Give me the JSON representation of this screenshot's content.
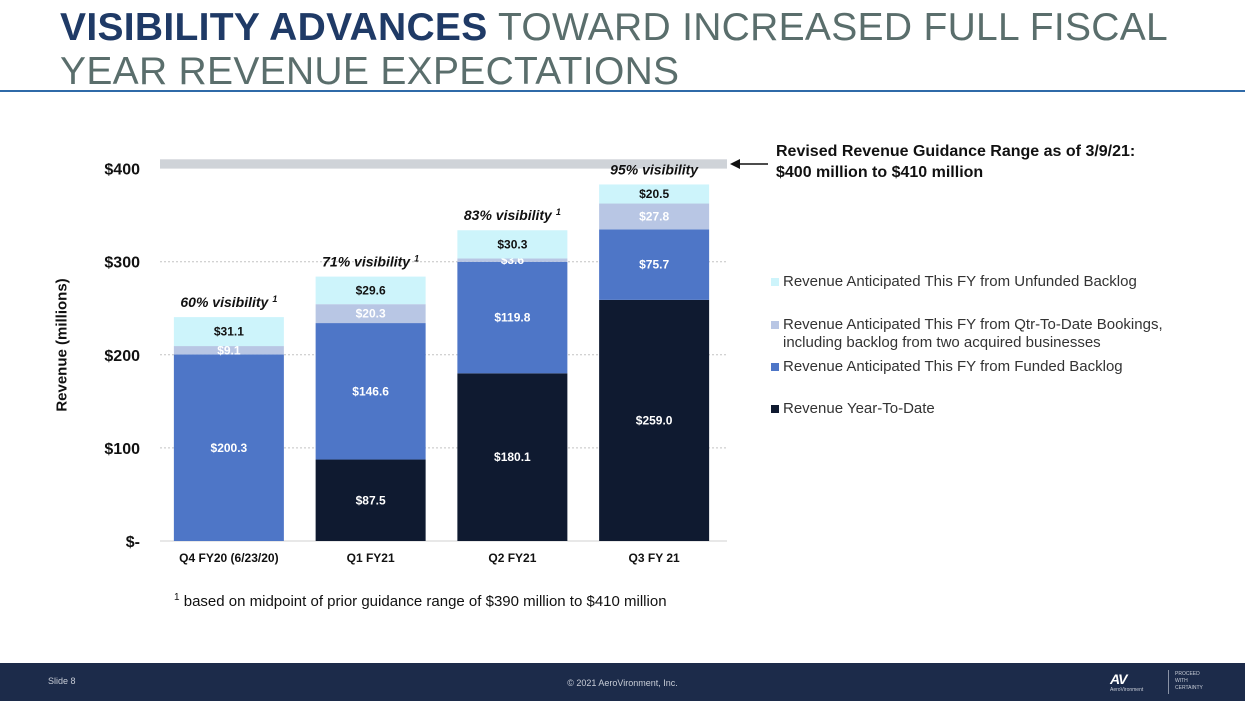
{
  "title": {
    "bold": "VISIBILITY ADVANCES",
    "rest": " TOWARD INCREASED FULL FISCAL YEAR REVENUE EXPECTATIONS"
  },
  "annotation": {
    "line1": "Revised Revenue Guidance Range as of 3/9/21:",
    "line2": "$400 million to $410 million"
  },
  "footnote": {
    "marker": "1",
    "text": " based on midpoint of prior guidance range of $390 million to $410 million"
  },
  "footer": {
    "slide": "Slide 8",
    "copyright": "© 2021 AeroVironment, Inc.",
    "logo_mark": "AV",
    "logo_name": "AeroVironment",
    "tagline": [
      "PROCEED",
      "WITH",
      "CERTAINTY"
    ]
  },
  "colors": {
    "title_bold": "#1f3a66",
    "title_rest": "#5a6e6c",
    "rule": "#2f6aa8",
    "footer_bg": "#1c2b4a",
    "guidance_band": "#cfd3d8"
  },
  "chart_data": {
    "type": "bar",
    "stacked": true,
    "categories": [
      "Q4 FY20 (6/23/20)",
      "Q1 FY21",
      "Q2 FY21",
      "Q3 FY 21"
    ],
    "series": [
      {
        "name": "Revenue Year-To-Date",
        "values": [
          null,
          87.5,
          180.1,
          259.0
        ],
        "labels": [
          "",
          "$87.5",
          "$180.1",
          "$259.0"
        ],
        "color": "#0f1a30",
        "label_color": "#ffffff"
      },
      {
        "name": "Revenue Anticipated This FY from Funded Backlog",
        "values": [
          200.3,
          146.6,
          119.8,
          75.7
        ],
        "labels": [
          "$200.3",
          "$146.6",
          "$119.8",
          "$75.7"
        ],
        "color": "#4e76c7",
        "label_color": "#ffffff"
      },
      {
        "name": "Revenue Anticipated This FY from Qtr-To-Date Bookings, including backlog from two acquired businesses",
        "values": [
          9.1,
          20.3,
          3.6,
          27.8
        ],
        "labels": [
          "$9.1",
          "$20.3",
          "$3.6",
          "$27.8"
        ],
        "color": "#b8c6e4",
        "label_color": "#ffffff"
      },
      {
        "name": "Revenue Anticipated This FY from Unfunded Backlog",
        "values": [
          31.1,
          29.6,
          30.3,
          20.5
        ],
        "labels": [
          "$31.1",
          "$29.6",
          "$30.3",
          "$20.5"
        ],
        "color": "#cdf4fb",
        "label_color": "#111111"
      }
    ],
    "bar_annotations": [
      {
        "text": "60% visibility",
        "sup": "1"
      },
      {
        "text": "71% visibility",
        "sup": "1"
      },
      {
        "text": "83% visibility",
        "sup": "1"
      },
      {
        "text": "95% visibility",
        "sup": ""
      }
    ],
    "guidance_range": [
      400,
      410
    ],
    "ylabel": "Revenue (millions)",
    "ylim": [
      0,
      410
    ],
    "yticks": [
      0,
      100,
      200,
      300,
      400
    ],
    "ytick_labels": [
      "$-",
      "$100",
      "$200",
      "$300",
      "$400"
    ],
    "grid": true,
    "legend_position": "right"
  }
}
